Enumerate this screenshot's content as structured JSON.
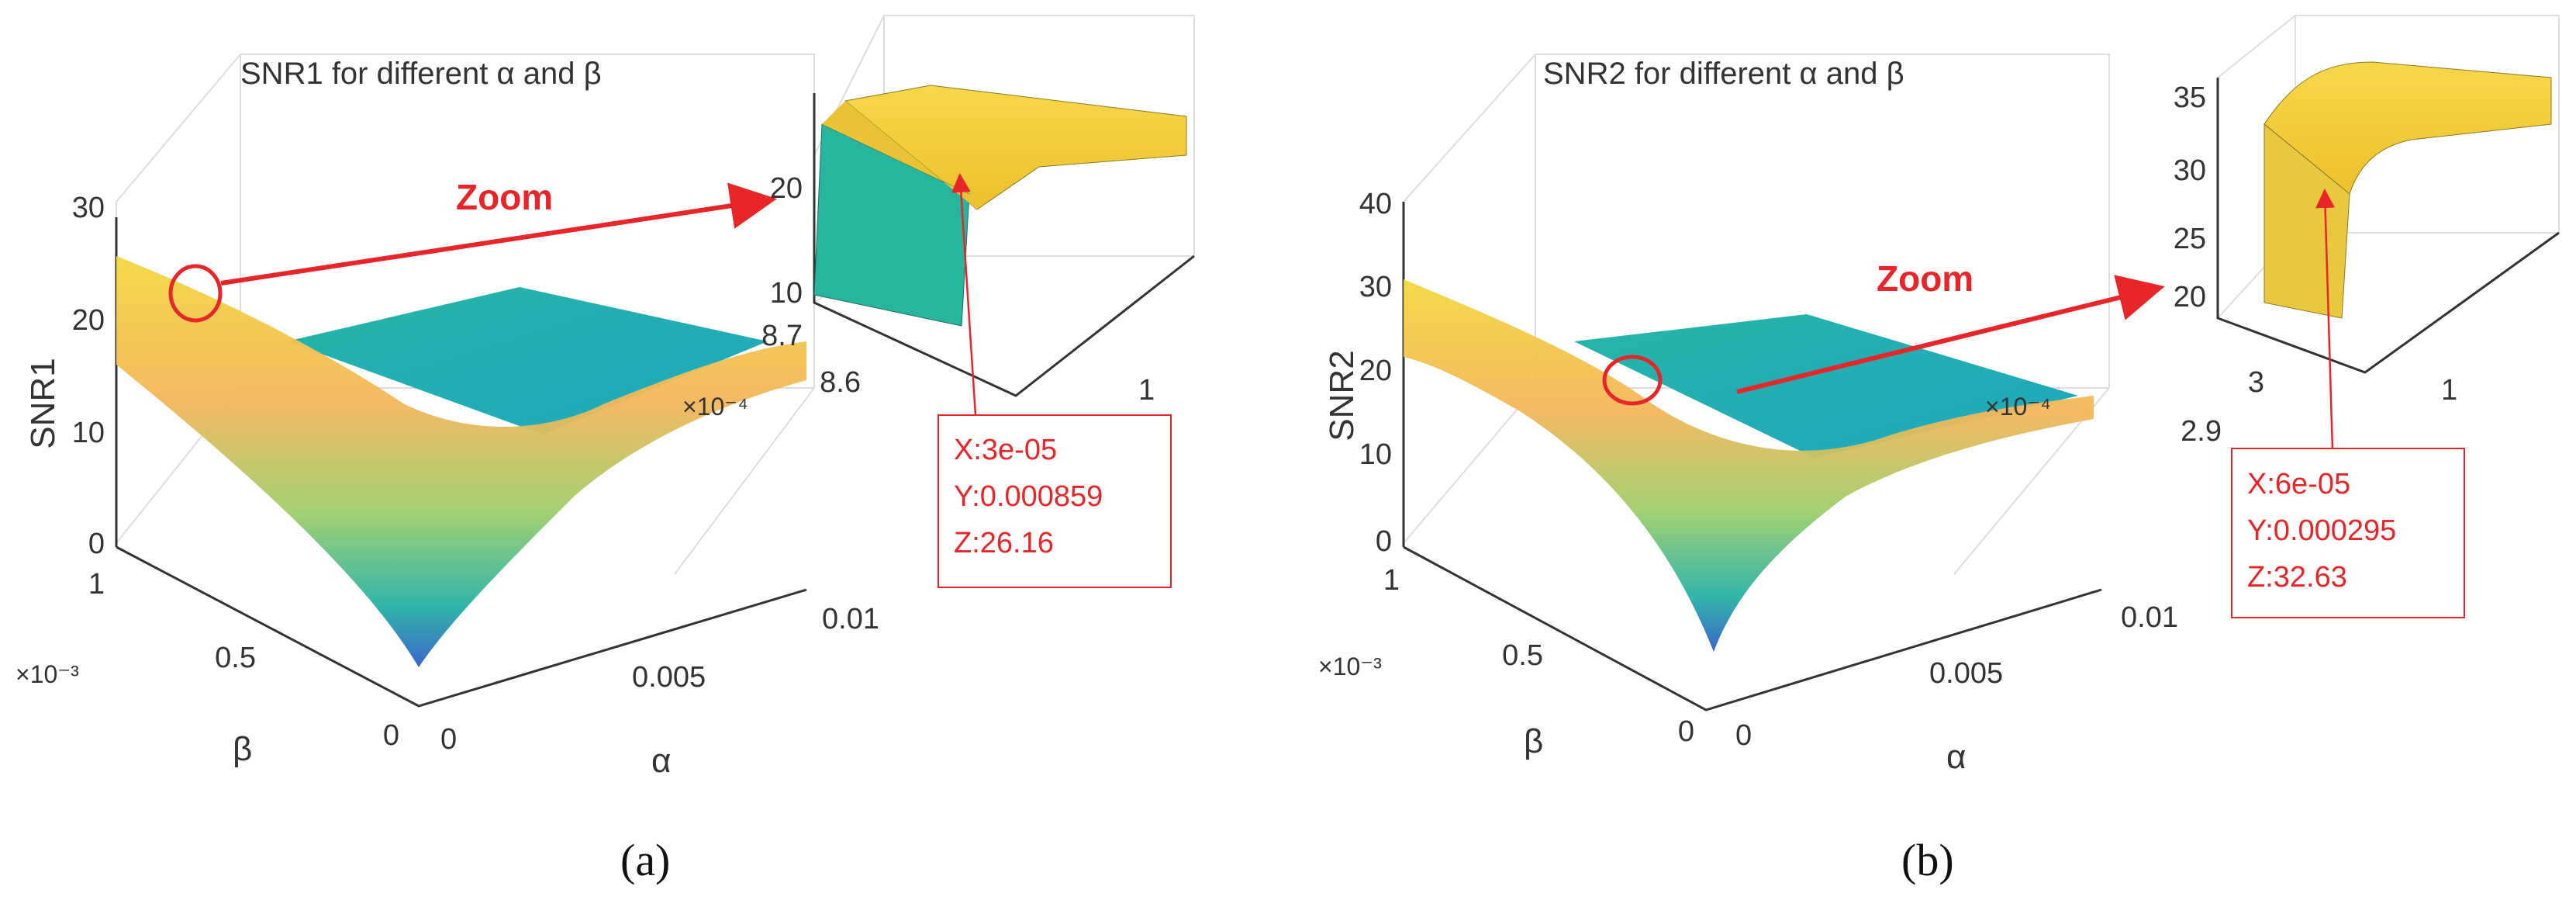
{
  "chart_data": [
    {
      "type": "surface",
      "title": "SNR1 for different α and β",
      "zlabel": "SNR1",
      "xlabel": "α",
      "ylabel": "β",
      "zticks": [
        "0",
        "10",
        "20",
        "30"
      ],
      "xticks": [
        "0",
        "0.005",
        "0.01"
      ],
      "yticks": [
        "0",
        "0.5",
        "1"
      ],
      "yexponent": "×10⁻³",
      "xexponent_inline": "×10⁻⁴",
      "zlim": [
        0,
        30
      ],
      "zoom_label": "Zoom",
      "panel_label": "(a)",
      "inset": {
        "zticks": [
          "10",
          "20"
        ],
        "yticks": [
          "8.6",
          "8.7"
        ],
        "xticks": [
          "1"
        ]
      },
      "datatip": {
        "x": "X:3e-05",
        "y": "Y:0.000859",
        "z": "Z:26.16"
      }
    },
    {
      "type": "surface",
      "title": "SNR2 for different α and β",
      "zlabel": "SNR2",
      "xlabel": "α",
      "ylabel": "β",
      "zticks": [
        "0",
        "10",
        "20",
        "30",
        "40"
      ],
      "xticks": [
        "0",
        "0.005",
        "0.01"
      ],
      "yticks": [
        "0",
        "0.5",
        "1"
      ],
      "yexponent": "×10⁻³",
      "xexponent_inline": "×10⁻⁴",
      "zlim": [
        0,
        40
      ],
      "zoom_label": "Zoom",
      "panel_label": "(b)",
      "inset": {
        "zticks": [
          "20",
          "25",
          "30",
          "35"
        ],
        "yticks": [
          "2.9",
          "3"
        ],
        "xticks": [
          "1"
        ]
      },
      "datatip": {
        "x": "X:6e-05",
        "y": "Y:0.000295",
        "z": "Z:32.63"
      }
    }
  ],
  "colors": {
    "surface_low": "#3a7fd0",
    "surface_mid": "#21b3a3",
    "surface_high": "#f0d640",
    "zoom_inset_face": "#f1d33c",
    "zoom_inset_side": "#25b59a",
    "annotation": "#e8262a",
    "axis": "#333333",
    "grid": "#dddddd"
  }
}
